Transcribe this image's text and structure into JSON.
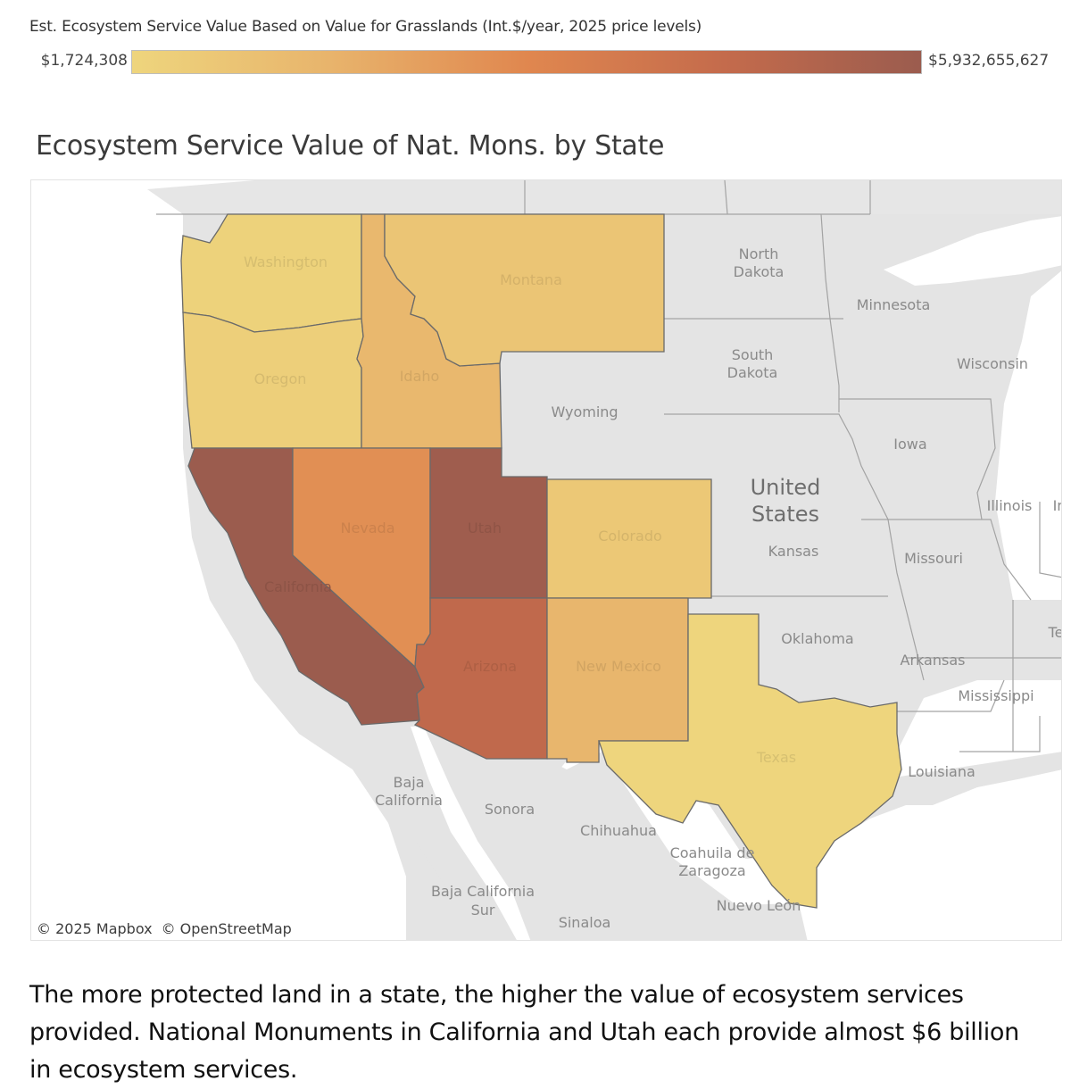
{
  "legend": {
    "title": "Est. Ecosystem Service Value Based on Value for Grasslands (Int.$/year, 2025 price levels)",
    "min_label": "$1,724,308",
    "max_label": "$5,932,655,627",
    "min_value": 1724308,
    "max_value": 5932655627,
    "color_stops": [
      "#eed57d",
      "#e8b46c",
      "#e0874f",
      "#c46b4c",
      "#9b5c4e"
    ]
  },
  "map": {
    "title": "Ecosystem Service Value of Nat. Mons. by State",
    "attribution": [
      "© 2025 Mapbox",
      "© OpenStreetMap"
    ],
    "base_colors": {
      "land": "#e4e4e4",
      "water": "#ffffff",
      "border": "#9a9a9a",
      "state_border": "#6b6b6b"
    }
  },
  "chart_data": {
    "type": "choropleth",
    "title": "Ecosystem Service Value of Nat. Mons. by State",
    "legend_title": "Est. Ecosystem Service Value Based on Value for Grasslands (Int.$/year, 2025 price levels)",
    "range": [
      1724308,
      5932655627
    ],
    "states": [
      {
        "name": "Washington",
        "value": 150000000
      },
      {
        "name": "Oregon",
        "value": 250000000
      },
      {
        "name": "Idaho",
        "value": 1300000000
      },
      {
        "name": "Montana",
        "value": 700000000
      },
      {
        "name": "California",
        "value": 5932655627
      },
      {
        "name": "Nevada",
        "value": 2700000000
      },
      {
        "name": "Utah",
        "value": 5800000000
      },
      {
        "name": "Arizona",
        "value": 4600000000
      },
      {
        "name": "Colorado",
        "value": 600000000
      },
      {
        "name": "New Mexico",
        "value": 1400000000
      },
      {
        "name": "Texas",
        "value": 1724308
      }
    ],
    "unshaded_labels": [
      "Wyoming",
      "North Dakota",
      "South Dakota",
      "Minnesota",
      "Wisconsin",
      "Iowa",
      "United States",
      "Kansas",
      "Illinois",
      "Missouri",
      "Oklahoma",
      "Arkansas",
      "Mississippi",
      "Louisiana",
      "Baja California",
      "Sonora",
      "Chihuahua",
      "Coahuila de Zaragoza",
      "Baja California Sur",
      "Nuevo León",
      "Sinaloa"
    ],
    "cut_off_labels": [
      "In",
      "Te"
    ]
  },
  "caption": "The more protected land in a state, the higher the value of ecosystem services provided. National Monuments in California and Utah each provide almost $6 billion in ecosystem services."
}
